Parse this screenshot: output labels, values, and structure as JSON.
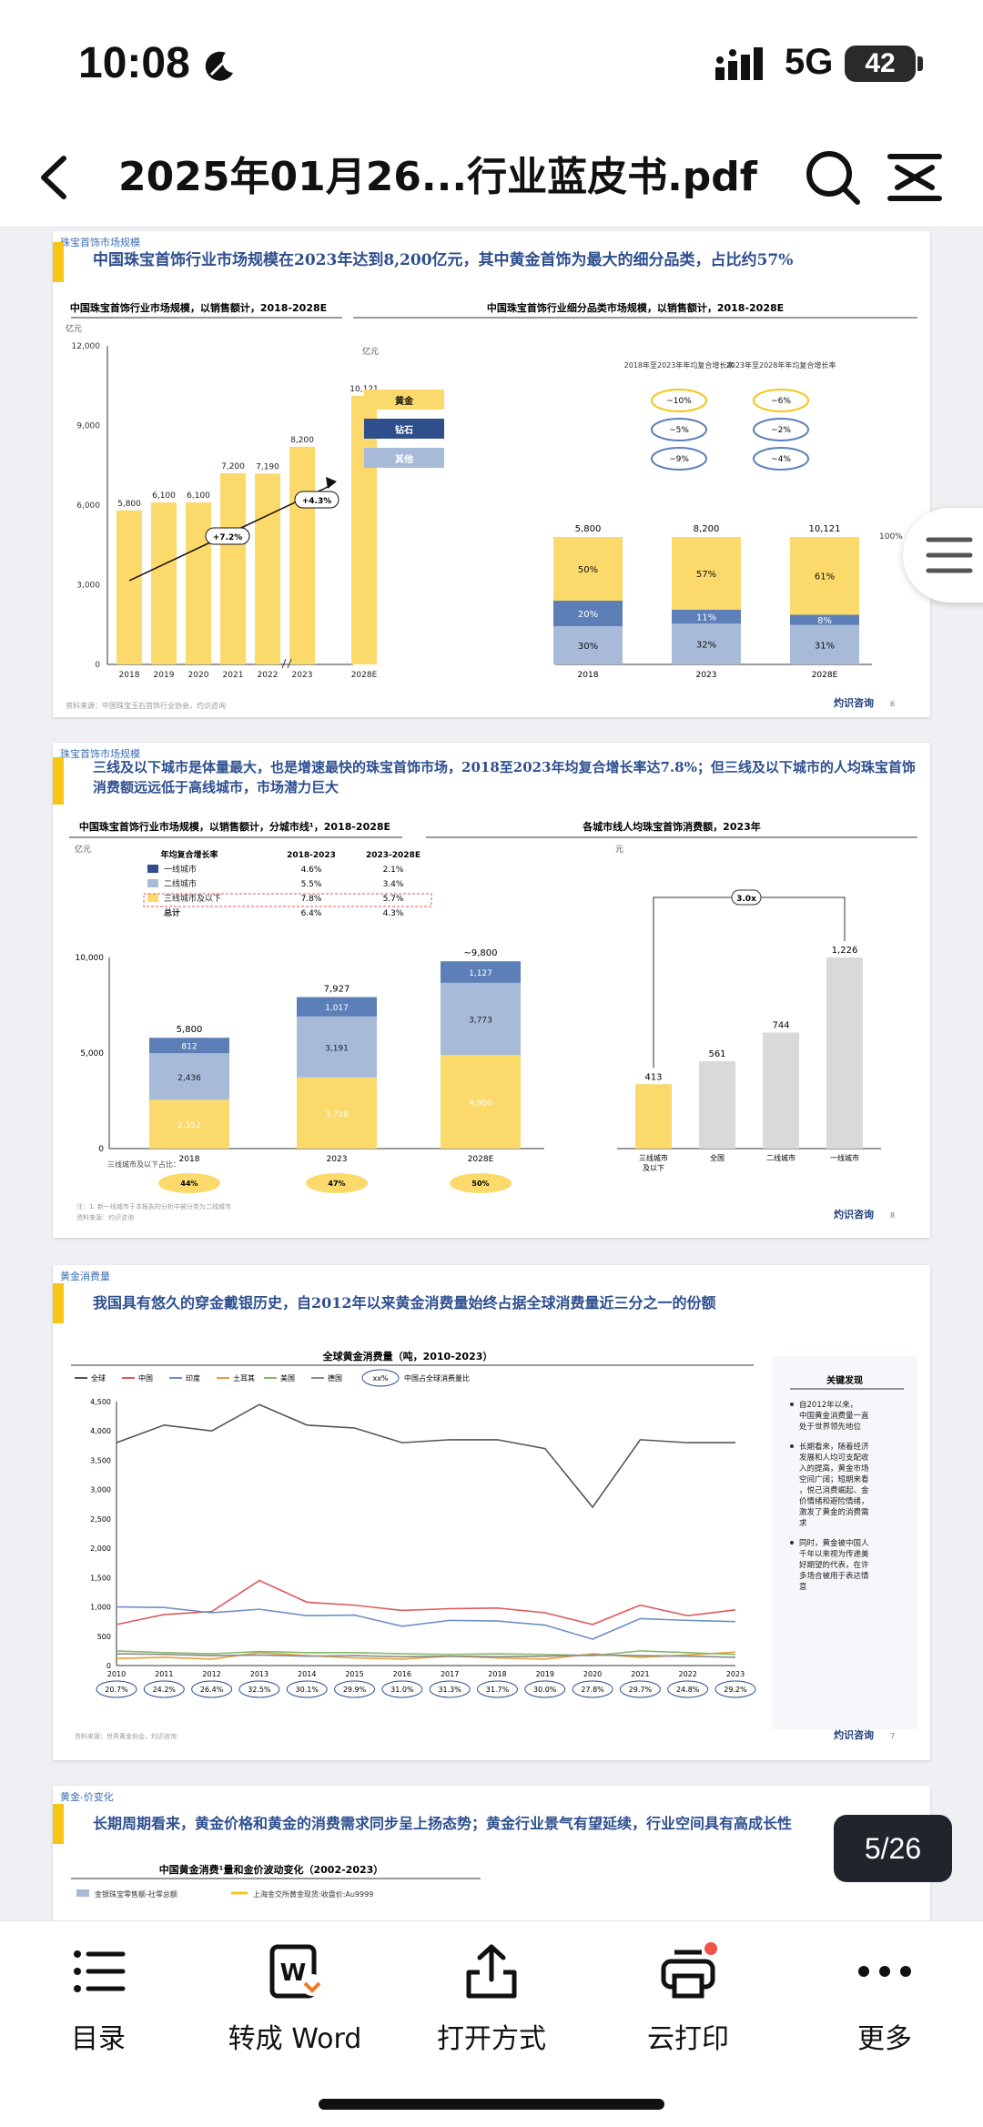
{
  "status_bar": {
    "time": "10:08",
    "network": "5G",
    "battery": "42"
  },
  "nav": {
    "title": "2025年01月26...行业蓝皮书.pdf"
  },
  "pages": [
    {
      "section": "珠宝首饰市场规模",
      "headline": "中国珠宝首饰行业市场规模在2023年达到8,200亿元，其中黄金首饰为最大的细分品类，占比约57%",
      "left_chart_title": "中国珠宝首饰行业市场规模，以销售额计，2018-2028E",
      "right_chart_title": "中国珠宝首饰行业细分品类市场规模，以销售额计，2018-2028E",
      "unit": "亿元",
      "growth_labels": [
        "+7.2%",
        "+4.3%"
      ],
      "right_headers": [
        "2018年至2023年年均复合增长率",
        "2023年至2028年年均复合增长率"
      ],
      "right_categories": [
        {
          "name": "黄金",
          "cagr1": "~10%",
          "cagr2": "~6%"
        },
        {
          "name": "钻石",
          "cagr1": "~5%",
          "cagr2": "~2%"
        },
        {
          "name": "其他",
          "cagr1": "~9%",
          "cagr2": "~4%"
        }
      ],
      "hundred": "100%",
      "source": "资料来源：中国珠宝玉石首饰行业协会，灼识咨询",
      "logo": "灼识咨询",
      "page_no": "6"
    },
    {
      "section": "珠宝首饰市场规模",
      "headline": "三线及以下城市是体量最大，也是增速最快的珠宝首饰市场，2018至2023年均复合增长率达7.8%；但三线及以下城市的人均珠宝首饰消费额远远低于高线城市，市场潜力巨大",
      "left_chart_title": "中国珠宝首饰行业市场规模，以销售额计，分城市线¹，2018-2028E",
      "right_chart_title": "各城市线人均珠宝首饰消费额，2023年",
      "unit": "亿元",
      "right_unit": "元",
      "legend_header": [
        "年均复合增长率",
        "2018-2023",
        "2023-2028E"
      ],
      "legend_rows": [
        {
          "name": "一线城市",
          "a": "4.6%",
          "b": "2.1%"
        },
        {
          "name": "二线城市",
          "a": "5.5%",
          "b": "3.4%"
        },
        {
          "name": "三线城市及以下",
          "a": "7.8%",
          "b": "5.7%"
        },
        {
          "name": "总计",
          "a": "6.4%",
          "b": "4.3%"
        }
      ],
      "share_label": "三线城市及以下占比：",
      "shares": [
        "44%",
        "47%",
        "50%"
      ],
      "ratio_label": "3.0x",
      "footnote": "注：1. 新一线城市于本报告的分析中被分类为二线城市",
      "source": "资料来源：灼识咨询",
      "logo": "灼识咨询",
      "page_no": "8"
    },
    {
      "section": "黄金消费量",
      "headline": "我国具有悠久的穿金戴银历史，自2012年以来黄金消费量始终占据全球消费量近三分之一的份额",
      "chart_title": "全球黄金消费量（吨，2010-2023）",
      "legend": [
        "全球",
        "中国",
        "印度",
        "土耳其",
        "美国",
        "德国"
      ],
      "legend_share": "xx%",
      "legend_share_label": "中国占全球消费量比",
      "shares": [
        "20.7%",
        "24.2%",
        "26.4%",
        "32.5%",
        "30.1%",
        "29.9%",
        "31.0%",
        "31.3%",
        "31.7%",
        "30.0%",
        "27.8%",
        "29.7%",
        "24.8%",
        "29.2%"
      ],
      "findings_title": "关键发现",
      "findings": [
        "自2012年以来，中国黄金消费量一直处于世界领先地位",
        "长期看来，随着经济发展和人均可支配收入的提高，黄金市场空间广阔；短期来看，悦己消费崛起、金价情绪和避险情绪，激发了黄金的消费需求",
        "同时，黄金被中国人千年以来视为传递美好期望的代表，在许多场合被用于表达情意"
      ],
      "source": "资料来源：世界黄金协会，灼识咨询",
      "logo": "灼识咨询",
      "page_no": "7"
    },
    {
      "section": "黄金-价变化",
      "headline": "长期周期看来，黄金价格和黄金的消费需求同步呈上扬态势；黄金行业景气有望延续，行业空间具有高成长性",
      "chart_title": "中国黄金消费¹量和金价波动变化（2002-2023）",
      "legend": [
        "金银珠宝零售额-社零总额",
        "上海金交所黄金现货:收盘价:Au9999"
      ]
    }
  ],
  "page_indicator": "5/26",
  "toolbar": {
    "items": [
      {
        "label": "目录",
        "icon": "list-icon"
      },
      {
        "label": "转成 Word",
        "icon": "word-convert-icon"
      },
      {
        "label": "打开方式",
        "icon": "share-icon"
      },
      {
        "label": "云打印",
        "icon": "printer-icon"
      },
      {
        "label": "更多",
        "icon": "more-icon"
      }
    ]
  },
  "chart_data": [
    {
      "type": "bar",
      "categories": [
        "2018",
        "2019",
        "2020",
        "2021",
        "2022",
        "2023",
        "2028E"
      ],
      "values": [
        5800,
        6100,
        6100,
        7200,
        7190,
        8200,
        10121
      ],
      "ylim": [
        0,
        12000
      ],
      "yticks": [
        "0",
        "3,000",
        "6,000",
        "9,000",
        "12,000"
      ],
      "value_labels": [
        "5,800",
        "6,100",
        "6,100",
        "7,200",
        "7,190",
        "8,200",
        "10,121"
      ],
      "color": "#fbd96b"
    },
    {
      "type": "bar",
      "categories": [
        "2018",
        "2023",
        "2028E"
      ],
      "totals": [
        "5,800",
        "8,200",
        "10,121"
      ],
      "series": [
        {
          "name": "其他",
          "values": [
            30,
            32,
            31
          ],
          "labels": [
            "30%",
            "32%",
            "31%"
          ],
          "color": "#a7bbd9"
        },
        {
          "name": "钻石",
          "values": [
            20,
            11,
            8
          ],
          "labels": [
            "20%",
            "11%",
            "8%"
          ],
          "color": "#5c7fb8"
        },
        {
          "name": "黄金",
          "values": [
            50,
            57,
            61
          ],
          "labels": [
            "50%",
            "57%",
            "61%"
          ],
          "color": "#fbd96b"
        }
      ]
    },
    {
      "type": "bar",
      "categories": [
        "2018",
        "2023",
        "2028E"
      ],
      "totals": [
        "5,800",
        "7,927",
        "~9,800"
      ],
      "ylim": [
        0,
        10000
      ],
      "yticks": [
        "0",
        "5,000",
        "10,000"
      ],
      "series": [
        {
          "name": "三线城市及以下",
          "values": [
            2552,
            3719,
            4900
          ],
          "labels": [
            "2,552",
            "3,719",
            "4,900"
          ],
          "color": "#fbd96b"
        },
        {
          "name": "二线城市",
          "values": [
            2436,
            3191,
            3773
          ],
          "labels": [
            "2,436",
            "3,191",
            "3,773"
          ],
          "color": "#a7bbd9"
        },
        {
          "name": "一线城市",
          "values": [
            812,
            1017,
            1127
          ],
          "labels": [
            "812",
            "1,017",
            "1,127"
          ],
          "color": "#5c7fb8"
        }
      ]
    },
    {
      "type": "bar",
      "categories": [
        "三线城市及以下",
        "全国",
        "二线城市",
        "一线城市"
      ],
      "values": [
        413,
        561,
        744,
        1226
      ],
      "value_labels": [
        "413",
        "561",
        "744",
        "1,226"
      ]
    },
    {
      "type": "line",
      "x": [
        "2010",
        "2011",
        "2012",
        "2013",
        "2014",
        "2015",
        "2016",
        "2017",
        "2018",
        "2019",
        "2020",
        "2021",
        "2022",
        "2023"
      ],
      "yticks": [
        "0",
        "500",
        "1,000",
        "1,500",
        "2,000",
        "2,500",
        "3,000",
        "3,500",
        "4,000",
        "4,500"
      ],
      "series": [
        {
          "name": "全球",
          "values": [
            3800,
            4100,
            4000,
            4450,
            4100,
            4050,
            3800,
            3850,
            3850,
            3700,
            2700,
            3850,
            3800,
            3800
          ],
          "color": "#555555"
        },
        {
          "name": "中国",
          "values": [
            700,
            870,
            920,
            1450,
            1080,
            1030,
            940,
            970,
            980,
            900,
            700,
            1030,
            850,
            950
          ],
          "color": "#e05a5a"
        },
        {
          "name": "印度",
          "values": [
            1000,
            990,
            900,
            960,
            850,
            860,
            670,
            770,
            760,
            690,
            450,
            800,
            770,
            750
          ],
          "color": "#6f8fc7"
        },
        {
          "name": "土耳其",
          "values": [
            120,
            140,
            110,
            220,
            170,
            130,
            110,
            160,
            130,
            110,
            200,
            140,
            180,
            230
          ],
          "color": "#e5a33a"
        },
        {
          "name": "美国",
          "values": [
            250,
            220,
            200,
            240,
            220,
            220,
            200,
            190,
            200,
            190,
            170,
            250,
            220,
            190
          ],
          "color": "#86b86c"
        },
        {
          "name": "德国",
          "values": [
            200,
            190,
            170,
            180,
            160,
            170,
            150,
            160,
            150,
            160,
            180,
            170,
            160,
            140
          ],
          "color": "#8a8a8a"
        }
      ]
    }
  ]
}
